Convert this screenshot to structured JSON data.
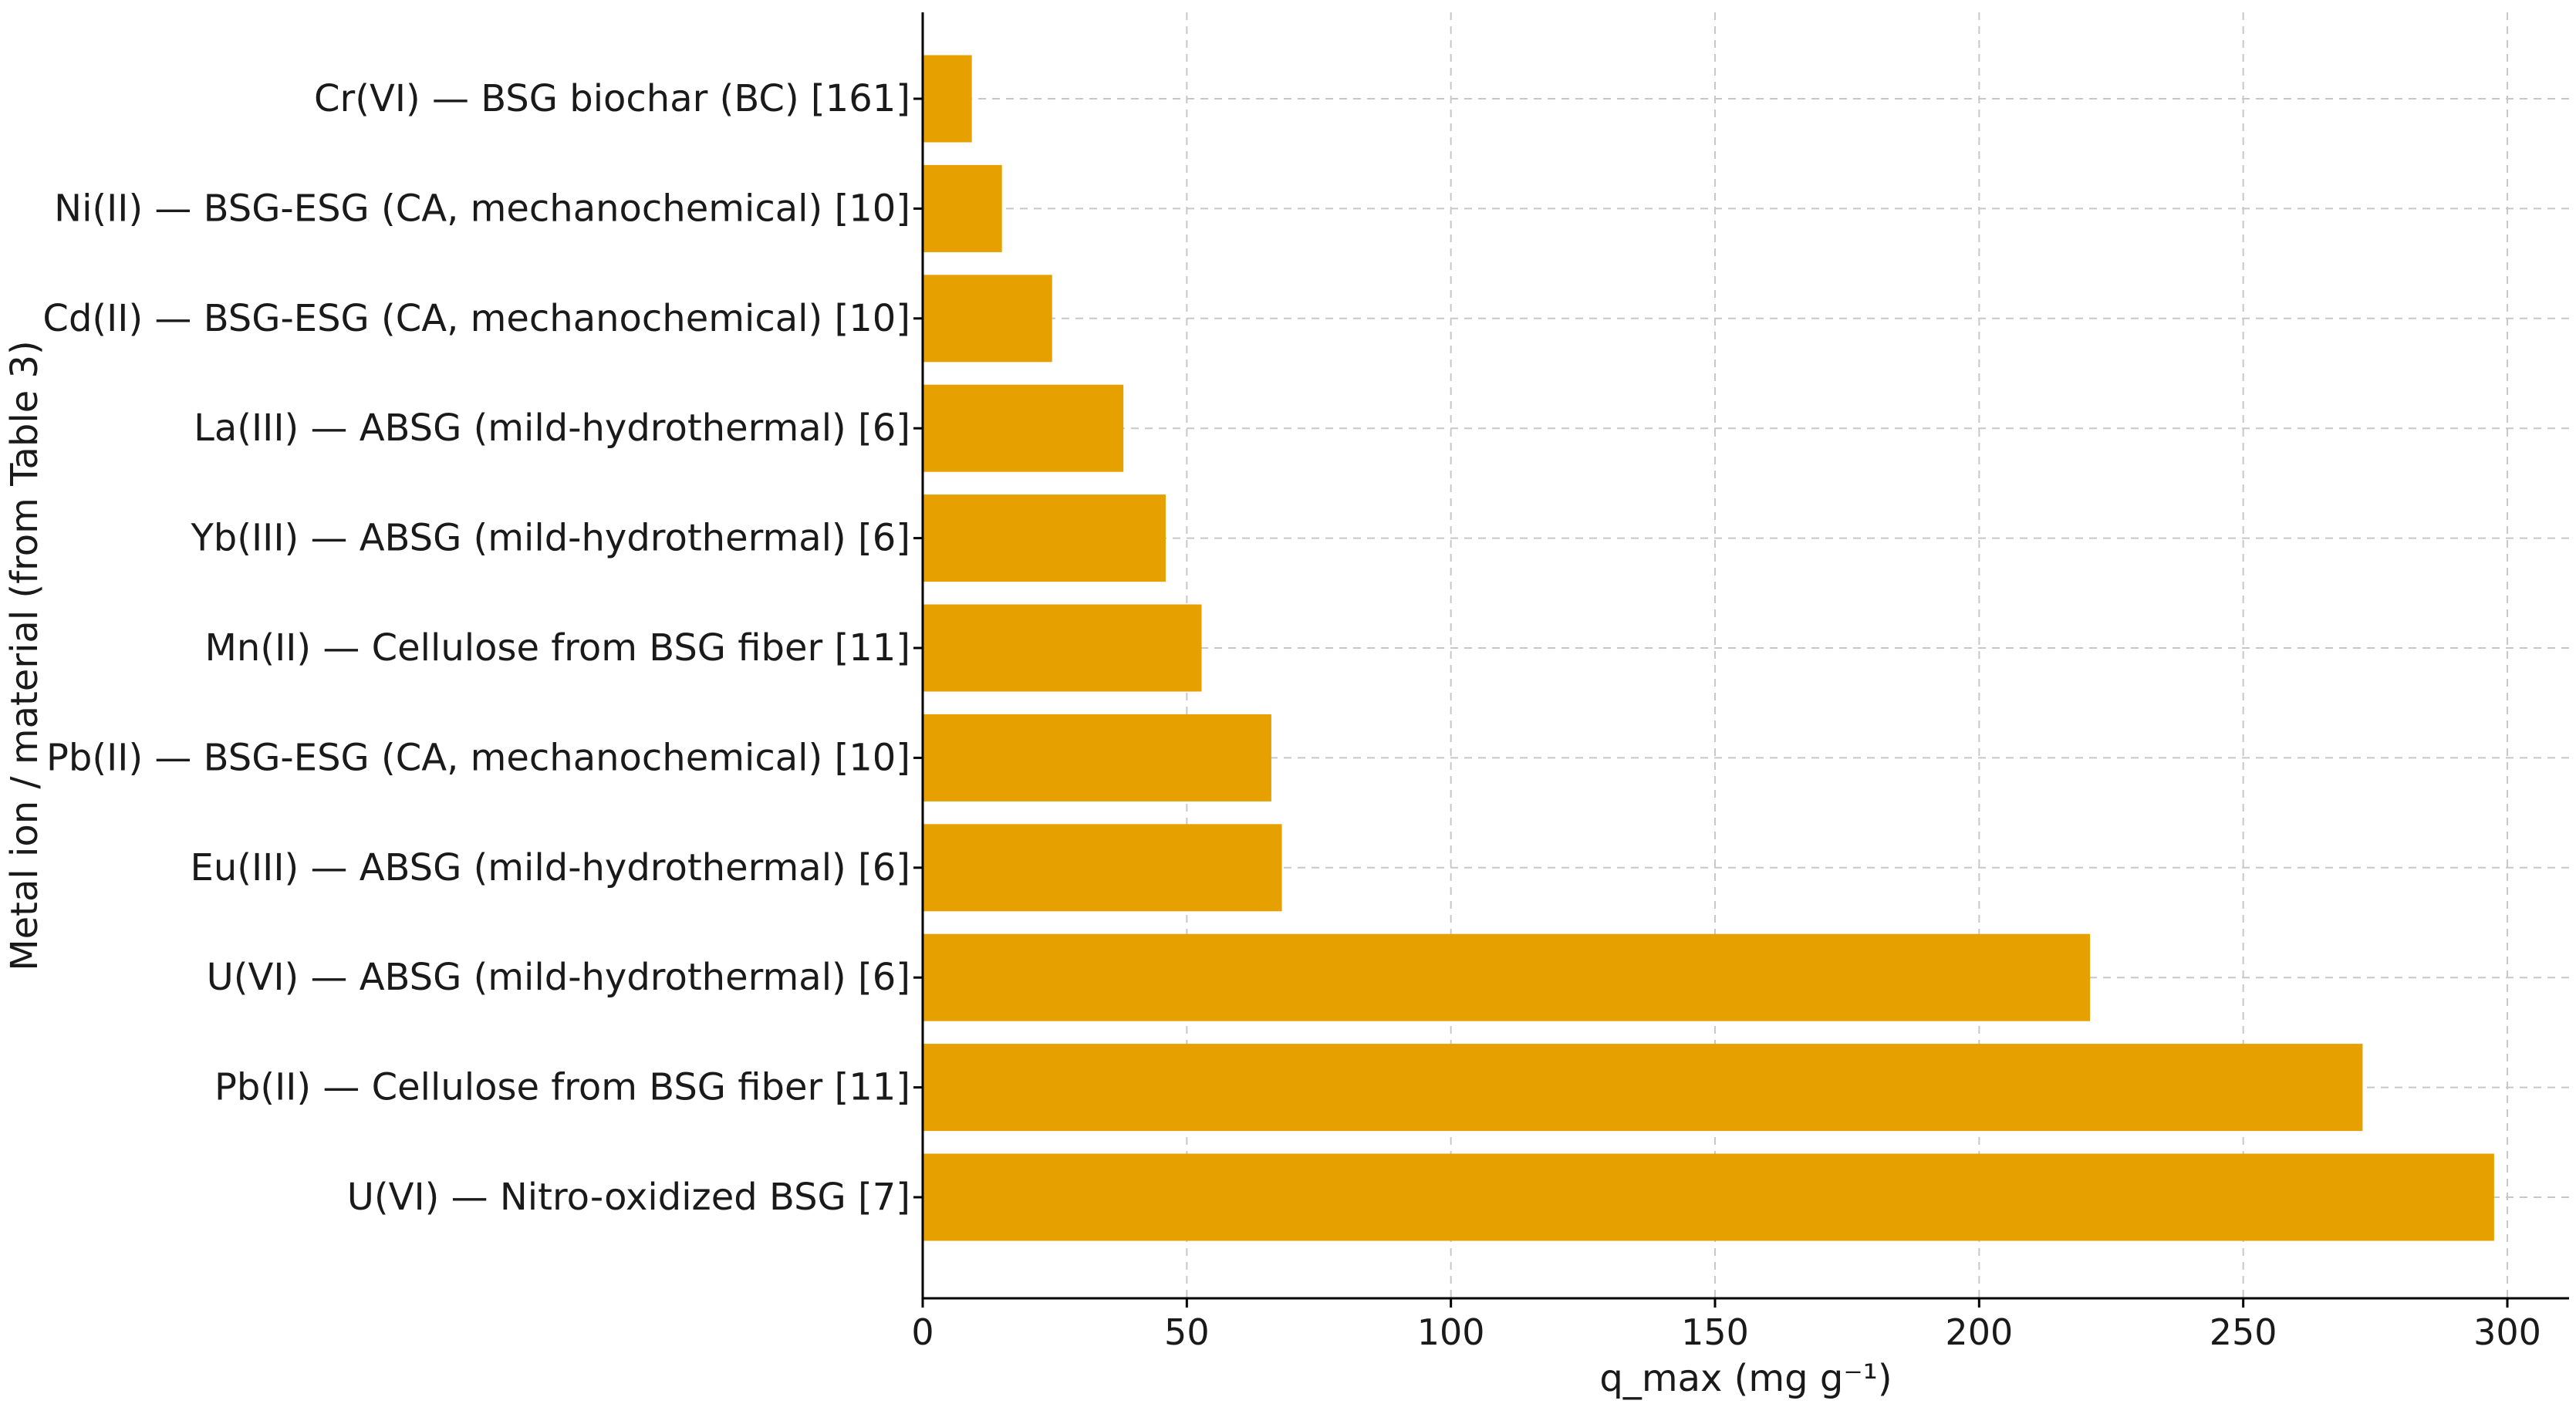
{
  "chart_data": {
    "type": "bar",
    "orientation": "horizontal",
    "bar_color": "#E6A000",
    "grid": true,
    "xlabel": "q_max (mg g⁻¹)",
    "ylabel": "Metal ion / material (from Table 3)",
    "xlim": [
      0,
      310
    ],
    "xticks": [
      0,
      50,
      100,
      150,
      200,
      250,
      300
    ],
    "categories": [
      "Cr(VI) — BSG biochar (BC) [161]",
      "Ni(II) — BSG-ESG (CA, mechanochemical) [10]",
      "Cd(II) — BSG-ESG (CA, mechanochemical) [10]",
      "La(III) — ABSG (mild-hydrothermal) [6]",
      "Yb(III) — ABSG (mild-hydrothermal) [6]",
      "Mn(II) — Cellulose from BSG fiber [11]",
      "Pb(II) — BSG-ESG (CA, mechanochemical) [10]",
      "Eu(III) — ABSG (mild-hydrothermal) [6]",
      "U(VI) — ABSG (mild-hydrothermal) [6]",
      "Pb(II) — Cellulose from BSG fiber [11]",
      "U(VI) — Nitro-oxidized BSG [7]"
    ],
    "values": [
      9.3,
      15.0,
      24.5,
      38.0,
      46.0,
      52.8,
      66.0,
      68.0,
      221.0,
      272.6,
      297.5
    ]
  }
}
